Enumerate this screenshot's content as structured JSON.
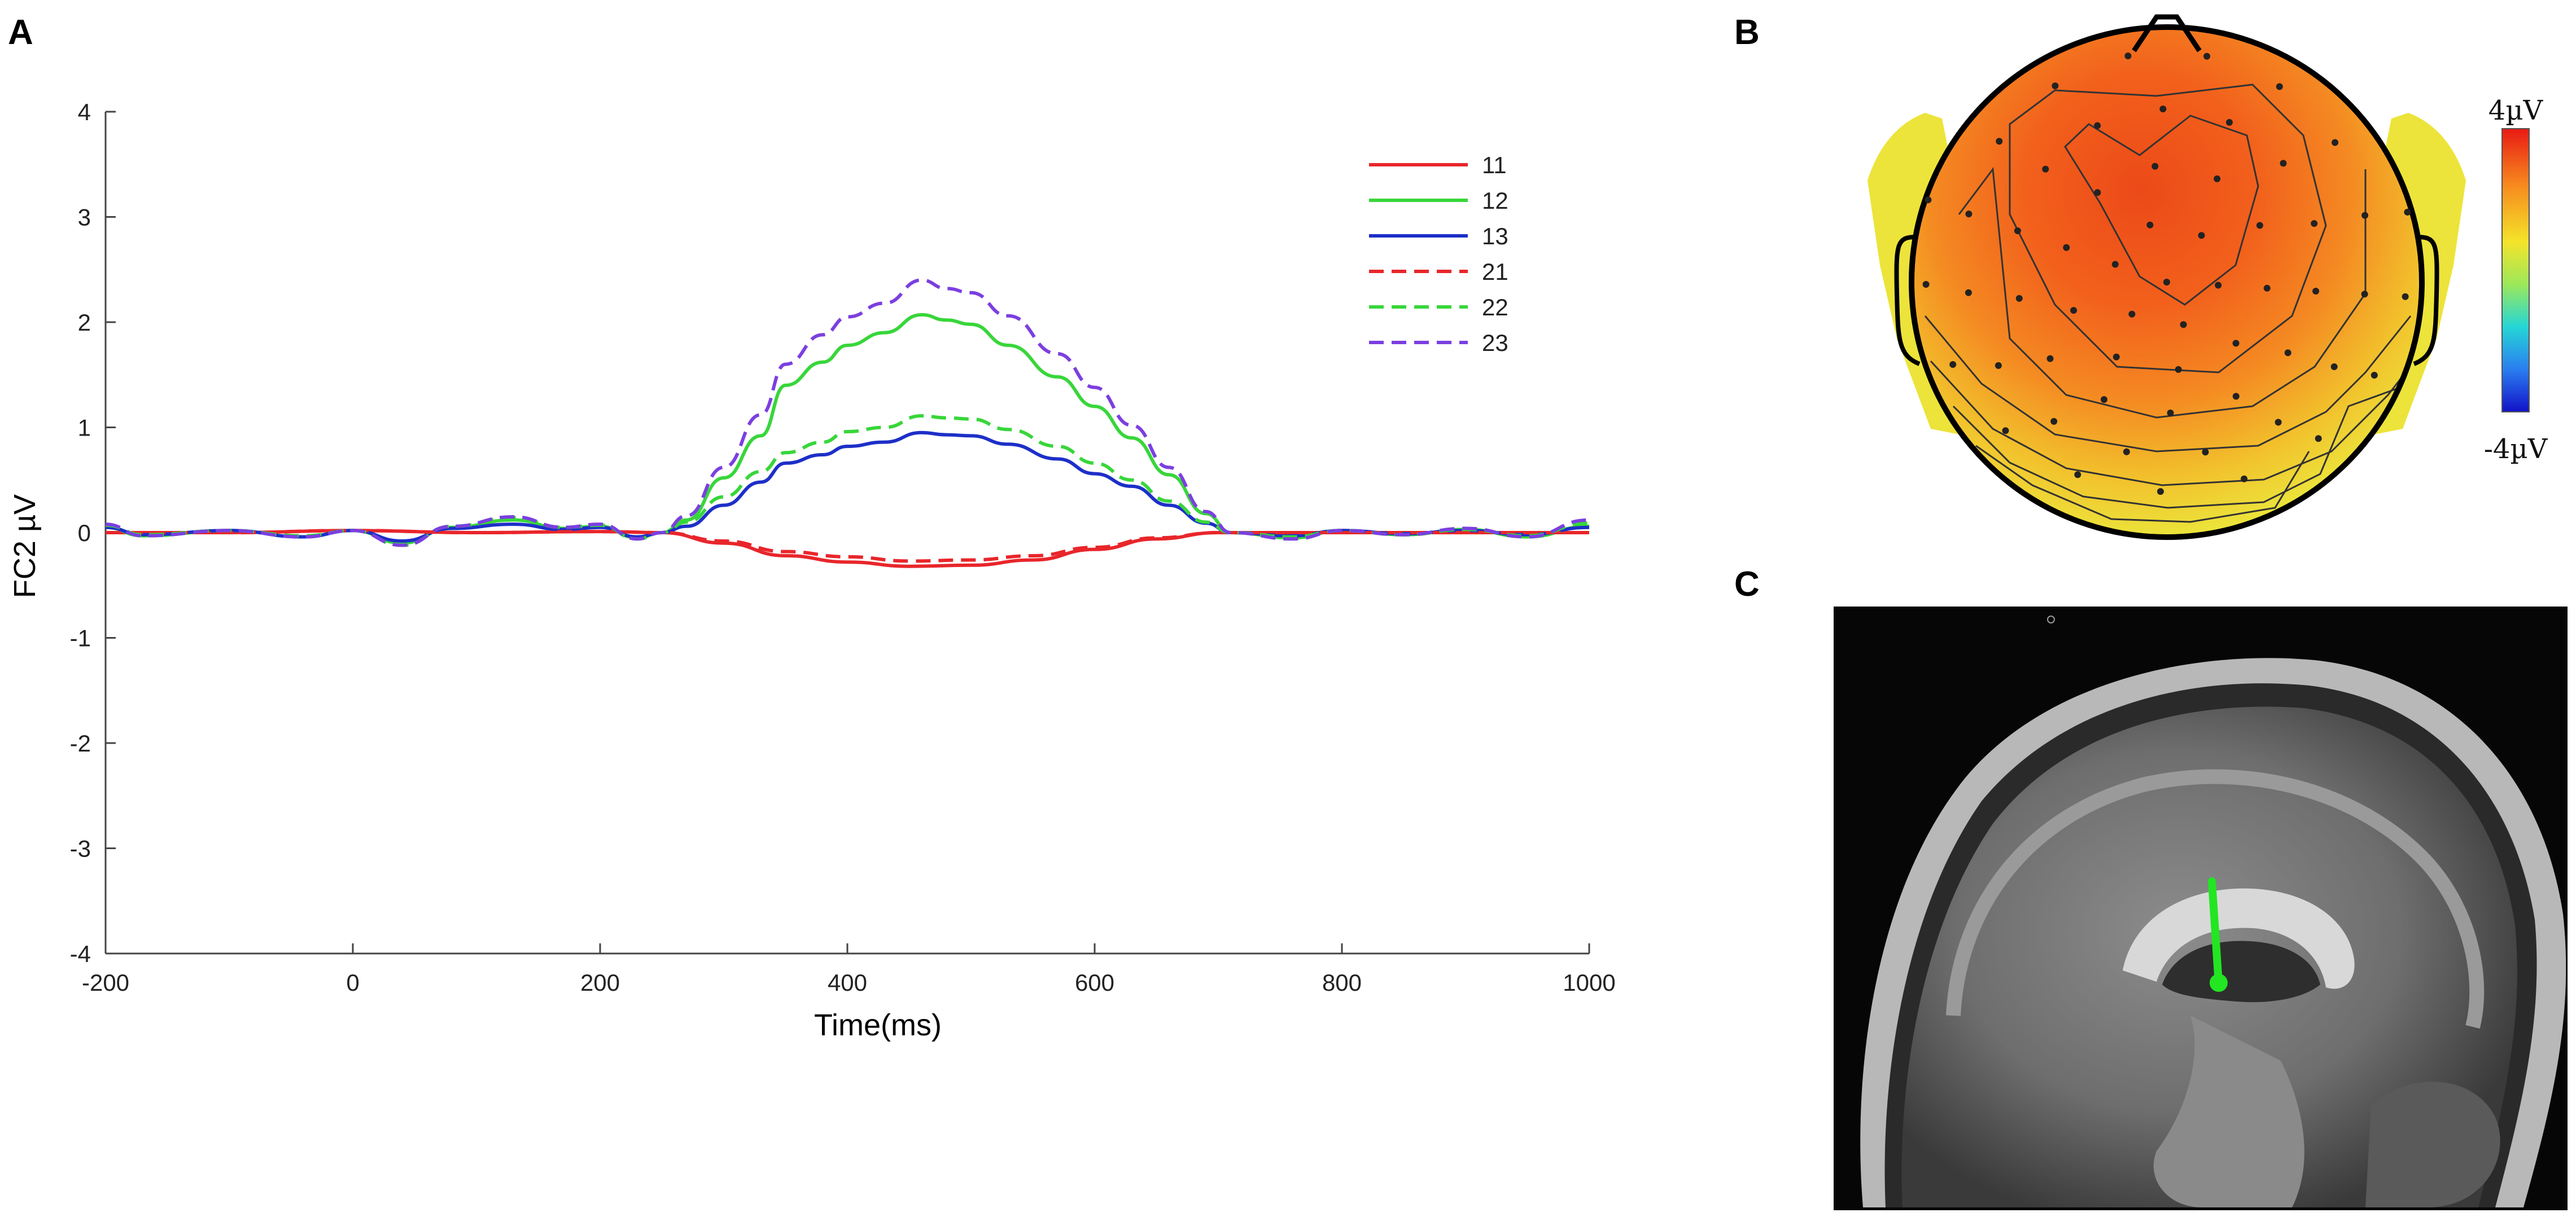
{
  "panel_labels": {
    "a": "A",
    "b": "B",
    "c": "C"
  },
  "chart_data": [
    {
      "type": "line",
      "panel": "A",
      "title": "",
      "xlabel": "Time(ms)",
      "ylabel": "FC2 µV",
      "xlim": [
        -200,
        1000
      ],
      "ylim": [
        -4,
        4
      ],
      "x_ticks": [
        -200,
        0,
        200,
        400,
        600,
        800,
        1000
      ],
      "y_ticks": [
        -4,
        -3,
        -2,
        -1,
        0,
        1,
        2,
        3,
        4
      ],
      "legend_position": "top-right",
      "series": [
        {
          "name": "11",
          "color": "#e8262b",
          "style": "solid",
          "points": [
            [
              -200,
              0
            ],
            [
              -100,
              0
            ],
            [
              0,
              0.02
            ],
            [
              100,
              0
            ],
            [
              200,
              0.01
            ],
            [
              250,
              0
            ],
            [
              300,
              -0.1
            ],
            [
              350,
              -0.22
            ],
            [
              400,
              -0.28
            ],
            [
              450,
              -0.32
            ],
            [
              500,
              -0.31
            ],
            [
              550,
              -0.26
            ],
            [
              600,
              -0.16
            ],
            [
              650,
              -0.06
            ],
            [
              700,
              0
            ],
            [
              800,
              0
            ],
            [
              900,
              0
            ],
            [
              1000,
              0
            ]
          ]
        },
        {
          "name": "12",
          "color": "#38d63a",
          "style": "solid",
          "points": [
            [
              -200,
              0.05
            ],
            [
              -170,
              -0.03
            ],
            [
              -100,
              0.02
            ],
            [
              -40,
              -0.04
            ],
            [
              0,
              0.02
            ],
            [
              40,
              -0.1
            ],
            [
              80,
              0.05
            ],
            [
              130,
              0.12
            ],
            [
              170,
              0.04
            ],
            [
              200,
              0.06
            ],
            [
              230,
              -0.05
            ],
            [
              250,
              0
            ],
            [
              270,
              0.12
            ],
            [
              300,
              0.52
            ],
            [
              330,
              0.92
            ],
            [
              350,
              1.4
            ],
            [
              380,
              1.62
            ],
            [
              400,
              1.78
            ],
            [
              430,
              1.9
            ],
            [
              460,
              2.07
            ],
            [
              480,
              2.02
            ],
            [
              500,
              1.98
            ],
            [
              530,
              1.78
            ],
            [
              570,
              1.48
            ],
            [
              600,
              1.2
            ],
            [
              630,
              0.9
            ],
            [
              660,
              0.55
            ],
            [
              690,
              0.18
            ],
            [
              710,
              0
            ],
            [
              760,
              -0.05
            ],
            [
              800,
              0.02
            ],
            [
              850,
              -0.02
            ],
            [
              900,
              0.03
            ],
            [
              950,
              -0.04
            ],
            [
              1000,
              0.06
            ]
          ]
        },
        {
          "name": "13",
          "color": "#1d2fc8",
          "style": "solid",
          "points": [
            [
              -200,
              0.05
            ],
            [
              -170,
              -0.02
            ],
            [
              -100,
              0.02
            ],
            [
              -40,
              -0.04
            ],
            [
              0,
              0.02
            ],
            [
              40,
              -0.08
            ],
            [
              80,
              0.04
            ],
            [
              130,
              0.08
            ],
            [
              170,
              0.03
            ],
            [
              200,
              0.05
            ],
            [
              230,
              -0.04
            ],
            [
              250,
              0
            ],
            [
              270,
              0.06
            ],
            [
              300,
              0.26
            ],
            [
              330,
              0.48
            ],
            [
              350,
              0.66
            ],
            [
              380,
              0.74
            ],
            [
              400,
              0.82
            ],
            [
              430,
              0.86
            ],
            [
              460,
              0.95
            ],
            [
              480,
              0.93
            ],
            [
              500,
              0.92
            ],
            [
              530,
              0.84
            ],
            [
              570,
              0.7
            ],
            [
              600,
              0.56
            ],
            [
              630,
              0.44
            ],
            [
              660,
              0.26
            ],
            [
              690,
              0.09
            ],
            [
              710,
              0
            ],
            [
              760,
              -0.03
            ],
            [
              800,
              0.02
            ],
            [
              850,
              -0.01
            ],
            [
              900,
              0.02
            ],
            [
              950,
              -0.02
            ],
            [
              1000,
              0.05
            ]
          ]
        },
        {
          "name": "21",
          "color": "#e8262b",
          "style": "dashed",
          "points": [
            [
              -200,
              0
            ],
            [
              -100,
              0
            ],
            [
              0,
              0.02
            ],
            [
              100,
              0
            ],
            [
              200,
              0.01
            ],
            [
              250,
              0
            ],
            [
              300,
              -0.08
            ],
            [
              350,
              -0.18
            ],
            [
              400,
              -0.23
            ],
            [
              450,
              -0.27
            ],
            [
              500,
              -0.26
            ],
            [
              550,
              -0.22
            ],
            [
              600,
              -0.14
            ],
            [
              650,
              -0.05
            ],
            [
              700,
              0
            ],
            [
              800,
              0
            ],
            [
              900,
              0
            ],
            [
              1000,
              0
            ]
          ]
        },
        {
          "name": "22",
          "color": "#38d63a",
          "style": "dashed",
          "points": [
            [
              -200,
              0.07
            ],
            [
              -170,
              -0.02
            ],
            [
              -100,
              0.02
            ],
            [
              -40,
              -0.03
            ],
            [
              0,
              0.02
            ],
            [
              40,
              -0.12
            ],
            [
              80,
              0.06
            ],
            [
              130,
              0.14
            ],
            [
              170,
              0.05
            ],
            [
              200,
              0.07
            ],
            [
              230,
              -0.06
            ],
            [
              250,
              0
            ],
            [
              270,
              0.1
            ],
            [
              300,
              0.34
            ],
            [
              330,
              0.58
            ],
            [
              350,
              0.76
            ],
            [
              380,
              0.86
            ],
            [
              400,
              0.96
            ],
            [
              430,
              1.0
            ],
            [
              460,
              1.11
            ],
            [
              480,
              1.09
            ],
            [
              500,
              1.08
            ],
            [
              530,
              0.98
            ],
            [
              570,
              0.82
            ],
            [
              600,
              0.66
            ],
            [
              630,
              0.5
            ],
            [
              660,
              0.3
            ],
            [
              690,
              0.1
            ],
            [
              710,
              0
            ],
            [
              760,
              -0.04
            ],
            [
              800,
              0.02
            ],
            [
              850,
              -0.02
            ],
            [
              900,
              0.03
            ],
            [
              950,
              -0.03
            ],
            [
              1000,
              0.09
            ]
          ]
        },
        {
          "name": "23",
          "color": "#7b3fe0",
          "style": "dashed",
          "points": [
            [
              -200,
              0.08
            ],
            [
              -170,
              -0.03
            ],
            [
              -100,
              0.02
            ],
            [
              -40,
              -0.04
            ],
            [
              0,
              0.02
            ],
            [
              40,
              -0.12
            ],
            [
              80,
              0.06
            ],
            [
              130,
              0.15
            ],
            [
              170,
              0.05
            ],
            [
              200,
              0.08
            ],
            [
              230,
              -0.06
            ],
            [
              250,
              0
            ],
            [
              270,
              0.16
            ],
            [
              300,
              0.62
            ],
            [
              330,
              1.12
            ],
            [
              350,
              1.6
            ],
            [
              380,
              1.88
            ],
            [
              400,
              2.05
            ],
            [
              430,
              2.18
            ],
            [
              460,
              2.4
            ],
            [
              480,
              2.32
            ],
            [
              500,
              2.28
            ],
            [
              530,
              2.06
            ],
            [
              570,
              1.7
            ],
            [
              600,
              1.38
            ],
            [
              630,
              1.02
            ],
            [
              660,
              0.62
            ],
            [
              690,
              0.2
            ],
            [
              710,
              0
            ],
            [
              760,
              -0.06
            ],
            [
              800,
              0.02
            ],
            [
              850,
              -0.02
            ],
            [
              900,
              0.04
            ],
            [
              950,
              -0.04
            ],
            [
              1000,
              0.12
            ]
          ]
        }
      ]
    },
    {
      "type": "heatmap",
      "panel": "B",
      "description_kind": "scalp topographic map",
      "color_range": [
        -4,
        4
      ],
      "colorbar_max_label": "4µV",
      "colorbar_min_label": "-4µV",
      "colorbar_colors": [
        "#e81a14",
        "#f78a1e",
        "#f4e42a",
        "#9ce85a",
        "#25d6d6",
        "#2a7ef0",
        "#1212c8"
      ]
    }
  ]
}
